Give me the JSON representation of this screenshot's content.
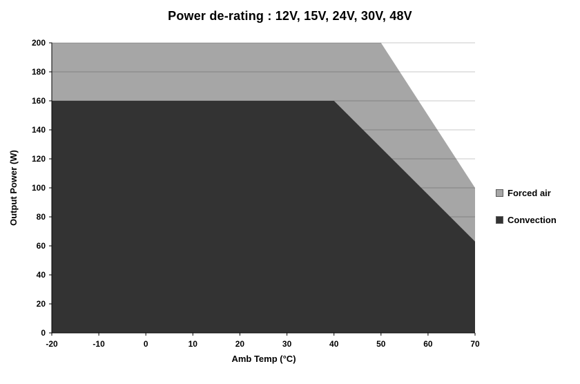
{
  "chart_data": {
    "type": "area",
    "title": "Power de-rating : 12V, 15V, 24V, 30V, 48V",
    "xlabel": "Amb Temp (°C)",
    "ylabel": "Output Power (W)",
    "xlim": [
      -20,
      70
    ],
    "ylim": [
      0,
      200
    ],
    "x_ticks": [
      -20,
      -10,
      0,
      10,
      20,
      30,
      40,
      50,
      60,
      70
    ],
    "y_ticks": [
      0,
      20,
      40,
      60,
      80,
      100,
      120,
      140,
      160,
      180,
      200
    ],
    "grid": "horizontal",
    "grid_color": "#c9c9c9",
    "axis_color": "#000000",
    "background_color": "#ffffff",
    "legend_position": "right",
    "series": [
      {
        "name": "Forced air",
        "color": "#a6a6a6",
        "points": [
          [
            -20,
            200
          ],
          [
            50,
            200
          ],
          [
            70,
            100
          ]
        ]
      },
      {
        "name": "Convection",
        "color": "#333333",
        "points": [
          [
            -20,
            160
          ],
          [
            40,
            160
          ],
          [
            70,
            63
          ]
        ]
      }
    ]
  }
}
